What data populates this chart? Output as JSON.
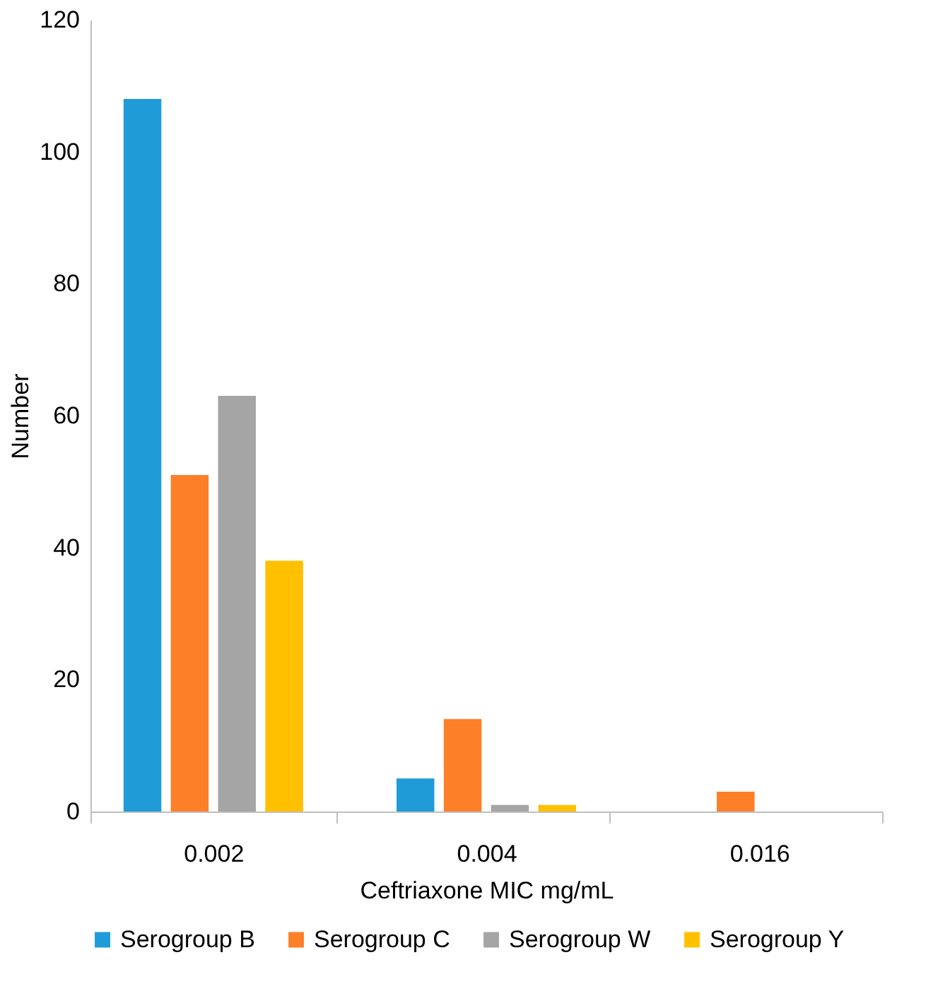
{
  "chart_data": {
    "type": "bar",
    "xlabel": "Ceftriaxone MIC mg/mL",
    "ylabel": "Number",
    "categories": [
      "0.002",
      "0.004",
      "0.016"
    ],
    "series": [
      {
        "name": "Serogroup B",
        "color": "#1f9bd7",
        "values": [
          108,
          5,
          0
        ]
      },
      {
        "name": "Serogroup C",
        "color": "#fd7f28",
        "values": [
          51,
          14,
          3
        ]
      },
      {
        "name": "Serogroup W",
        "color": "#a5a5a5",
        "values": [
          63,
          1,
          0
        ]
      },
      {
        "name": "Serogroup Y",
        "color": "#ffc000",
        "values": [
          38,
          1,
          0
        ]
      }
    ],
    "ylim": [
      0,
      120
    ],
    "yticks": [
      0,
      20,
      40,
      60,
      80,
      100,
      120
    ],
    "grid": false,
    "legend": "bottom"
  }
}
